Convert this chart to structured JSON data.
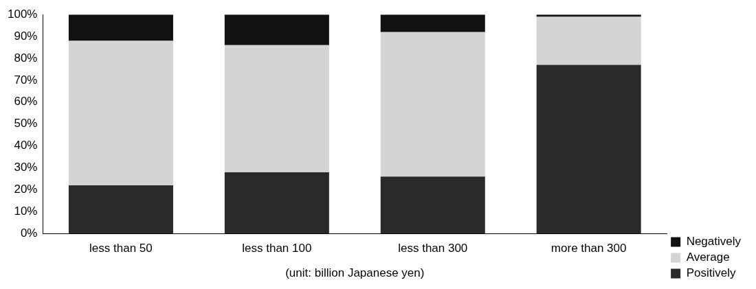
{
  "chart_data": {
    "type": "bar",
    "stacked": true,
    "xlabel": "(unit: billion Japanese yen)",
    "categories": [
      "less than 50",
      "less than 100",
      "less than 300",
      "more than 300"
    ],
    "series": [
      {
        "name": "Positively",
        "color": "#2a2a2a",
        "values": [
          22,
          28,
          26,
          77
        ]
      },
      {
        "name": "Average",
        "color": "#d4d4d4",
        "values": [
          66,
          58,
          66,
          22
        ]
      },
      {
        "name": "Negatively",
        "color": "#111111",
        "values": [
          12,
          14,
          8,
          1
        ]
      }
    ],
    "ylim": [
      0,
      100
    ],
    "yticks": [
      {
        "value": 0,
        "label": "0%"
      },
      {
        "value": 10,
        "label": "10%"
      },
      {
        "value": 20,
        "label": "20%"
      },
      {
        "value": 30,
        "label": "30%"
      },
      {
        "value": 40,
        "label": "40%"
      },
      {
        "value": 50,
        "label": "50%"
      },
      {
        "value": 60,
        "label": "60%"
      },
      {
        "value": 70,
        "label": "70%"
      },
      {
        "value": 80,
        "label": "80%"
      },
      {
        "value": 90,
        "label": "90%"
      },
      {
        "value": 100,
        "label": "100%"
      }
    ],
    "grid": false,
    "legend": "bottom right"
  }
}
